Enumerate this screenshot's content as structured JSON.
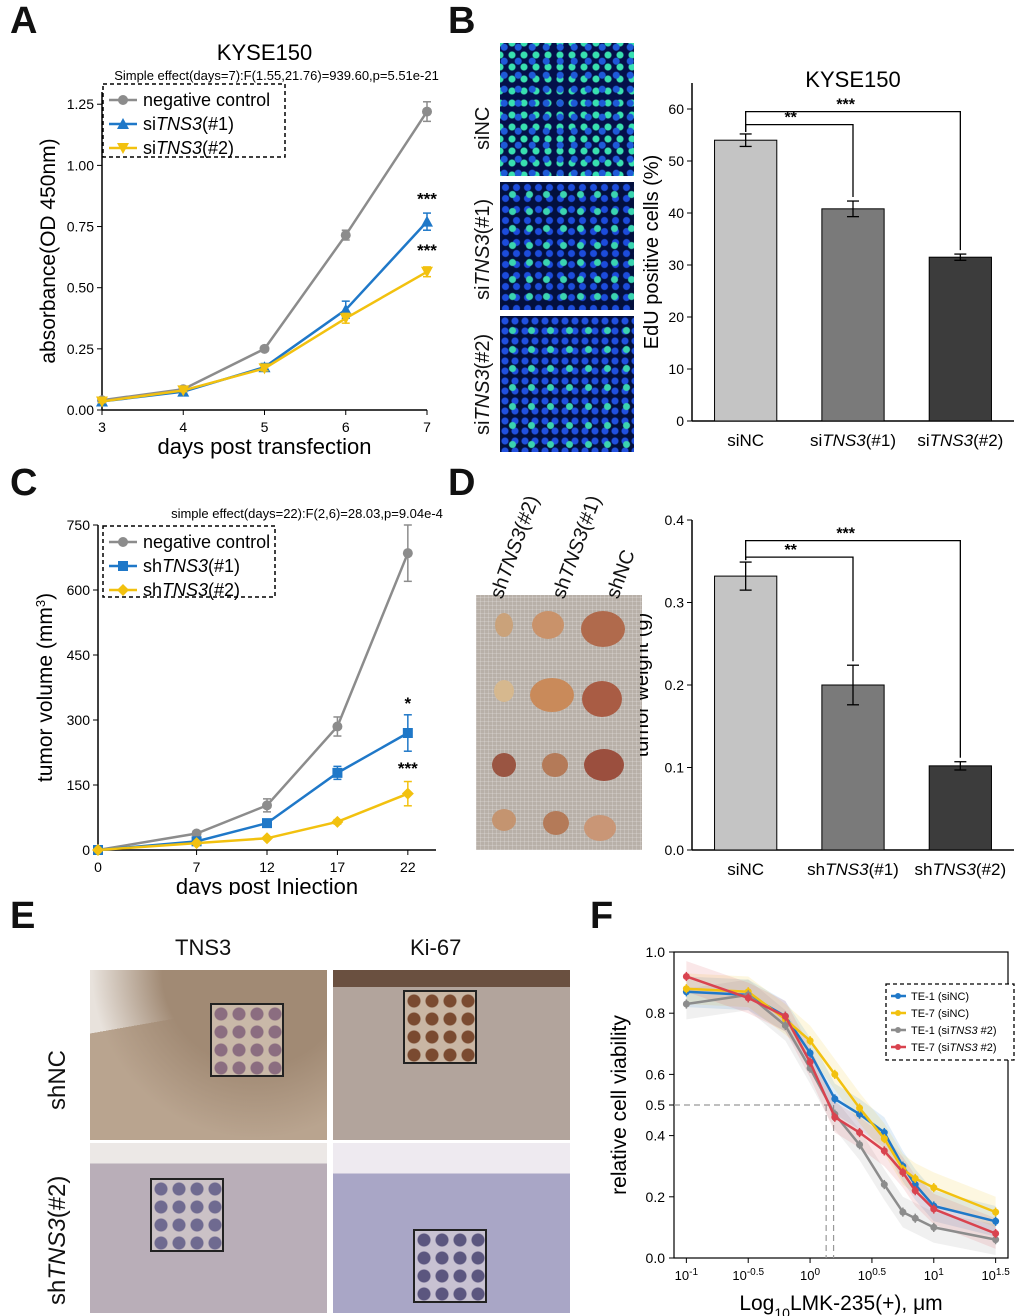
{
  "panel_labels": {
    "A": "A",
    "B": "B",
    "C": "C",
    "D": "D",
    "E": "E",
    "F": "F"
  },
  "colors": {
    "gray": "#8c8c8c",
    "blue": "#1f78c8",
    "yellow": "#f2c10f",
    "red": "#d9434f",
    "bar1": "#c4c4c4",
    "bar2": "#7a7a7a",
    "bar3": "#3c3c3c"
  },
  "chart_data": [
    {
      "id": "A",
      "type": "line",
      "title": "KYSE150",
      "subtitle": "Simple effect(days=7):F(1.55,21.76)=939.60,p=5.51e-21",
      "xlabel": "days post transfection",
      "ylabel": "absorbance(OD 450nm)",
      "xlim": [
        3,
        7
      ],
      "ylim": [
        0,
        1.3
      ],
      "xticks": [
        3,
        4,
        5,
        6,
        7
      ],
      "yticks": [
        0.0,
        0.25,
        0.5,
        0.75,
        1.0,
        1.25
      ],
      "ytick_labels": [
        "0.00",
        "0.25",
        "0.50",
        "0.75",
        "1.00",
        "1.25"
      ],
      "series": [
        {
          "name_pre": "negative control",
          "name_em": "",
          "name_post": "",
          "color": "gray",
          "marker": "circle",
          "x": [
            3,
            4,
            5,
            6,
            7
          ],
          "y": [
            0.04,
            0.085,
            0.25,
            0.715,
            1.22
          ],
          "err": [
            0.005,
            0.005,
            0.01,
            0.02,
            0.04
          ]
        },
        {
          "name_pre": "si",
          "name_em": "TNS3",
          "name_post": "(#1)",
          "color": "blue",
          "marker": "triangle-up",
          "x": [
            3,
            4,
            5,
            6,
            7
          ],
          "y": [
            0.035,
            0.075,
            0.175,
            0.41,
            0.77
          ],
          "err": [
            0.005,
            0.005,
            0.015,
            0.035,
            0.035
          ]
        },
        {
          "name_pre": "si",
          "name_em": "TNS3",
          "name_post": "(#2)",
          "color": "yellow",
          "marker": "triangle-down",
          "x": [
            3,
            4,
            5,
            6,
            7
          ],
          "y": [
            0.035,
            0.08,
            0.17,
            0.375,
            0.565
          ],
          "err": [
            0.005,
            0.005,
            0.01,
            0.02,
            0.02
          ]
        }
      ],
      "annotations": [
        {
          "text": "***",
          "x": 7,
          "y": 0.84
        },
        {
          "text": "***",
          "x": 7,
          "y": 0.63
        }
      ]
    },
    {
      "id": "B",
      "type": "bar",
      "title": "KYSE150",
      "ylabel": "EdU positive cells (%)",
      "ylim": [
        0,
        65
      ],
      "yticks": [
        0,
        10,
        20,
        30,
        40,
        50,
        60
      ],
      "categories": [
        {
          "pre": "siNC",
          "em": "",
          "post": ""
        },
        {
          "pre": "si",
          "em": "TNS3",
          "post": "(#1)"
        },
        {
          "pre": "si",
          "em": "TNS3",
          "post": "(#2)"
        }
      ],
      "values": [
        54.0,
        40.8,
        31.5
      ],
      "err": [
        1.2,
        1.5,
        0.6
      ],
      "bar_colors": [
        "bar1",
        "bar2",
        "bar3"
      ],
      "brackets": [
        {
          "from": 0,
          "to": 1,
          "text": "**",
          "y": 57
        },
        {
          "from": 0,
          "to": 2,
          "text": "***",
          "y": 59.5
        }
      ]
    },
    {
      "id": "C",
      "type": "line",
      "subtitle": "simple effect(days=22):F(2,6)=28.03,p=9.04e-4",
      "xlabel": "days post Injection",
      "ylabel": "tumor volume (mm",
      "ylabel_sup": "3",
      "ylabel_tail": ")",
      "xlim": [
        0,
        24
      ],
      "ylim": [
        0,
        750
      ],
      "xticks": [
        0,
        7,
        12,
        17,
        22
      ],
      "yticks": [
        0,
        150,
        300,
        450,
        600,
        750
      ],
      "series": [
        {
          "name_pre": "negative control",
          "name_em": "",
          "name_post": "",
          "color": "gray",
          "marker": "circle",
          "x": [
            0,
            7,
            12,
            17,
            22
          ],
          "y": [
            0,
            38,
            103,
            285,
            685
          ],
          "err": [
            0,
            6,
            15,
            22,
            65
          ]
        },
        {
          "name_pre": "sh",
          "name_em": "TNS3",
          "name_post": "(#1)",
          "color": "blue",
          "marker": "square",
          "x": [
            0,
            7,
            12,
            17,
            22
          ],
          "y": [
            0,
            20,
            62,
            178,
            270
          ],
          "err": [
            0,
            3,
            6,
            15,
            42
          ]
        },
        {
          "name_pre": "sh",
          "name_em": "TNS3",
          "name_post": "(#2)",
          "color": "yellow",
          "marker": "diamond",
          "x": [
            0,
            7,
            12,
            17,
            22
          ],
          "y": [
            0,
            16,
            27,
            65,
            130
          ],
          "err": [
            0,
            2,
            3,
            5,
            28
          ]
        }
      ],
      "annotations": [
        {
          "text": "*",
          "x": 22,
          "y": 325
        },
        {
          "text": "***",
          "x": 22,
          "y": 175
        }
      ]
    },
    {
      "id": "D",
      "type": "bar",
      "ylabel": "tumor weight (g)",
      "ylim": [
        0,
        0.4
      ],
      "yticks": [
        0.0,
        0.1,
        0.2,
        0.3,
        0.4
      ],
      "ytick_labels": [
        "0.0",
        "0.1",
        "0.2",
        "0.3",
        "0.4"
      ],
      "categories": [
        {
          "pre": "siNC",
          "em": "",
          "post": ""
        },
        {
          "pre": "sh",
          "em": "TNS3",
          "post": "(#1)"
        },
        {
          "pre": "sh",
          "em": "TNS3",
          "post": "(#2)"
        }
      ],
      "values": [
        0.332,
        0.2,
        0.102
      ],
      "err": [
        0.017,
        0.024,
        0.005
      ],
      "bar_colors": [
        "bar1",
        "bar2",
        "bar3"
      ],
      "brackets": [
        {
          "from": 0,
          "to": 1,
          "text": "**",
          "y": 0.355
        },
        {
          "from": 0,
          "to": 2,
          "text": "***",
          "y": 0.375
        }
      ]
    },
    {
      "id": "F",
      "type": "line",
      "ylabel": "relative cell viability",
      "xlabel_pre": "Log",
      "xlabel_sub": "10",
      "xlabel_post": "LMK-235(+), μm",
      "xlim": [
        -1.1,
        1.6
      ],
      "ylim": [
        0,
        1.0
      ],
      "xticks": [
        -1,
        -0.5,
        0,
        0.5,
        1,
        1.5
      ],
      "xtick_base": "10",
      "xtick_exp": [
        "-1",
        "-0.5",
        "0",
        "0.5",
        "1",
        "1.5"
      ],
      "yticks": [
        0.0,
        0.2,
        0.4,
        0.5,
        0.6,
        0.8,
        1.0
      ],
      "ytick_labels": [
        "0.0",
        "0.2",
        "0.4",
        "0.5",
        "0.6",
        "0.8",
        "1.0"
      ],
      "ic50_line": {
        "y": 0.5,
        "x": [
          0.13,
          0.19
        ]
      },
      "series": [
        {
          "name_pre": "TE-1 (siNC)",
          "name_em": "",
          "name_post": "",
          "color": "blue",
          "x": [
            -1,
            -0.5,
            -0.2,
            0,
            0.2,
            0.4,
            0.6,
            0.75,
            0.85,
            1.0,
            1.5
          ],
          "y": [
            0.87,
            0.86,
            0.79,
            0.67,
            0.52,
            0.47,
            0.41,
            0.3,
            0.24,
            0.17,
            0.12
          ]
        },
        {
          "name_pre": "TE-7 (siNC)",
          "name_em": "",
          "name_post": "",
          "color": "yellow",
          "x": [
            -1,
            -0.5,
            -0.2,
            0,
            0.2,
            0.4,
            0.6,
            0.75,
            0.85,
            1.0,
            1.5
          ],
          "y": [
            0.88,
            0.87,
            0.78,
            0.71,
            0.6,
            0.49,
            0.39,
            0.29,
            0.26,
            0.23,
            0.15
          ]
        },
        {
          "name_pre": "TE-1 (si",
          "name_em": "TNS3",
          "name_post": " #2)",
          "color": "gray",
          "x": [
            -1,
            -0.5,
            -0.2,
            0,
            0.2,
            0.4,
            0.6,
            0.75,
            0.85,
            1.0,
            1.5
          ],
          "y": [
            0.83,
            0.86,
            0.76,
            0.62,
            0.47,
            0.37,
            0.24,
            0.15,
            0.13,
            0.1,
            0.06
          ]
        },
        {
          "name_pre": "TE-7 (si",
          "name_em": "TNS3",
          "name_post": " #2)",
          "color": "red",
          "x": [
            -1,
            -0.5,
            -0.2,
            0,
            0.2,
            0.4,
            0.6,
            0.75,
            0.85,
            1.0,
            1.5
          ],
          "y": [
            0.92,
            0.85,
            0.79,
            0.64,
            0.46,
            0.41,
            0.35,
            0.28,
            0.22,
            0.16,
            0.08
          ]
        }
      ]
    }
  ],
  "panelB_images": {
    "labels": [
      {
        "pre": "siNC",
        "em": "",
        "post": ""
      },
      {
        "pre": "si",
        "em": "TNS3",
        "post": "(#1)"
      },
      {
        "pre": "si",
        "em": "TNS3",
        "post": "(#2)"
      }
    ]
  },
  "panelD_photo": {
    "labels": [
      {
        "pre": "sh",
        "em": "TNS3",
        "post": "(#2)"
      },
      {
        "pre": "sh",
        "em": "TNS3",
        "post": "(#1)"
      },
      {
        "pre": "shNC",
        "em": "",
        "post": ""
      }
    ]
  },
  "panelE_ihc": {
    "columns": [
      "TNS3",
      "Ki-67"
    ],
    "rows": [
      {
        "pre": "shNC",
        "em": "",
        "post": ""
      },
      {
        "pre": "sh",
        "em": "TNS3",
        "post": "(#2)"
      }
    ]
  }
}
